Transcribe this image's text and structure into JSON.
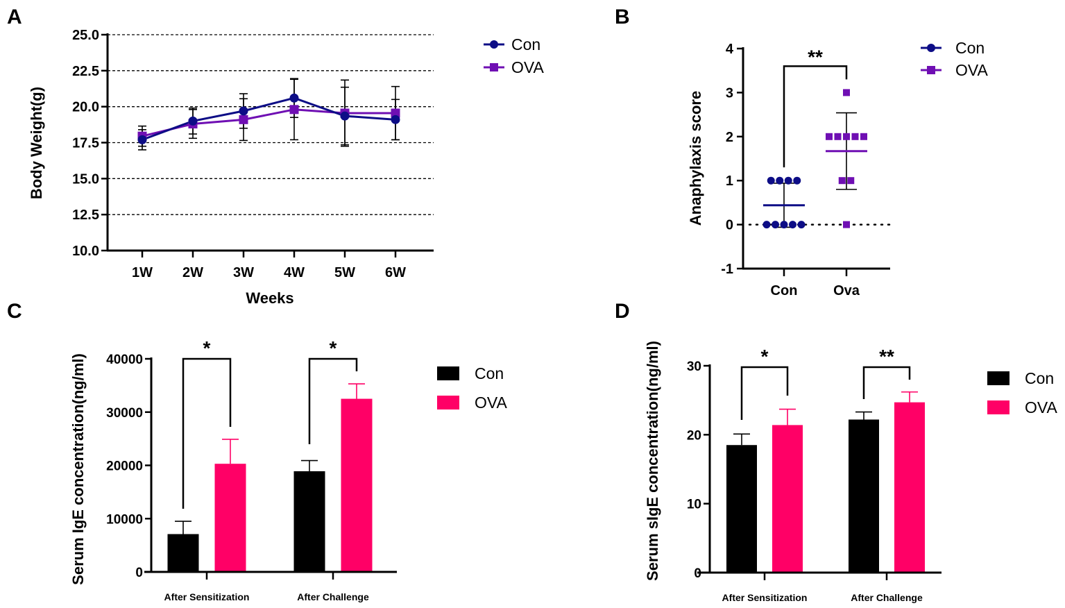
{
  "figure": {
    "panel_labels": [
      "A",
      "B",
      "C",
      "D"
    ],
    "colors": {
      "con_line": "#0d0d86",
      "ova_line": "#6f0fb3",
      "con_bar": "#000000",
      "ova_bar": "#ff0066",
      "axis": "#000000"
    }
  },
  "chart_data": [
    {
      "panel": "A",
      "type": "line",
      "title": "",
      "xlabel": "Weeks",
      "ylabel": "Body Weight(g)",
      "categories": [
        "1W",
        "2W",
        "3W",
        "4W",
        "5W",
        "6W"
      ],
      "ylim": [
        10.0,
        25.0
      ],
      "yticks": [
        "10.0",
        "12.5",
        "15.0",
        "17.5",
        "20.0",
        "22.5",
        "25.0"
      ],
      "ytick_values": [
        10.0,
        12.5,
        15.0,
        17.5,
        20.0,
        22.5,
        25.0
      ],
      "grid": "horizontal-dashed",
      "legend": {
        "placement": "top-right-outside",
        "entries": [
          "Con",
          "OVA"
        ]
      },
      "series": [
        {
          "name": "Con",
          "marker": "circle",
          "values": [
            17.7,
            19.0,
            19.7,
            20.6,
            19.35,
            19.1
          ],
          "err": [
            0.7,
            0.9,
            1.2,
            1.35,
            2.0,
            1.4
          ]
        },
        {
          "name": "OVA",
          "marker": "square",
          "values": [
            17.95,
            18.8,
            19.1,
            19.8,
            19.55,
            19.55
          ],
          "err": [
            0.7,
            1.0,
            1.45,
            2.1,
            2.3,
            1.85
          ]
        }
      ]
    },
    {
      "panel": "B",
      "type": "scatter",
      "title": "",
      "xlabel": "",
      "ylabel": "Anaphylaxis score",
      "categories": [
        "Con",
        "Ova"
      ],
      "ylim": [
        -1,
        4
      ],
      "yticks": [
        "-1",
        "0",
        "1",
        "2",
        "3",
        "4"
      ],
      "ytick_values": [
        -1,
        0,
        1,
        2,
        3,
        4
      ],
      "reference_line": 0,
      "legend": {
        "placement": "top-right-outside",
        "entries": [
          "Con",
          "OVA"
        ]
      },
      "series": [
        {
          "name": "Con",
          "marker": "circle",
          "points": [
            1,
            1,
            1,
            1,
            0,
            0,
            0,
            0,
            0
          ],
          "mean": 0.44,
          "sd": 0.5
        },
        {
          "name": "OVA",
          "marker": "square",
          "points": [
            3,
            2,
            2,
            2,
            2,
            2,
            1,
            1,
            0
          ],
          "mean": 1.67,
          "sd": 0.87
        }
      ],
      "significance": [
        {
          "between": [
            "Con",
            "Ova"
          ],
          "label": "**"
        }
      ]
    },
    {
      "panel": "C",
      "type": "bar",
      "title": "",
      "xlabel": "",
      "ylabel": "Serum IgE concentration(ng/ml)",
      "categories": [
        "After Sensitization",
        "After Challenge"
      ],
      "ylim": [
        0,
        40000
      ],
      "yticks": [
        "0",
        "10000",
        "20000",
        "30000",
        "40000"
      ],
      "ytick_values": [
        0,
        10000,
        20000,
        30000,
        40000
      ],
      "legend": {
        "placement": "right",
        "entries": [
          "Con",
          "OVA"
        ]
      },
      "series": [
        {
          "name": "Con",
          "values": [
            7100,
            18900
          ],
          "err": [
            2400,
            2000
          ]
        },
        {
          "name": "OVA",
          "values": [
            20300,
            32500
          ],
          "err": [
            4600,
            2800
          ]
        }
      ],
      "significance": [
        {
          "category": "After Sensitization",
          "label": "*"
        },
        {
          "category": "After Challenge",
          "label": "*"
        }
      ]
    },
    {
      "panel": "D",
      "type": "bar",
      "title": "",
      "xlabel": "",
      "ylabel": "Serum sIgE concentration(ng/ml)",
      "categories": [
        "After Sensitization",
        "After Challenge"
      ],
      "ylim": [
        0,
        30
      ],
      "yticks": [
        "0",
        "10",
        "20",
        "30"
      ],
      "ytick_values": [
        0,
        10,
        20,
        30
      ],
      "legend": {
        "placement": "right",
        "entries": [
          "Con",
          "OVA"
        ]
      },
      "series": [
        {
          "name": "Con",
          "values": [
            18.5,
            22.2
          ],
          "err": [
            1.6,
            1.1
          ]
        },
        {
          "name": "OVA",
          "values": [
            21.4,
            24.7
          ],
          "err": [
            2.3,
            1.5
          ]
        }
      ],
      "significance": [
        {
          "category": "After Sensitization",
          "label": "*"
        },
        {
          "category": "After Challenge",
          "label": "**"
        }
      ]
    }
  ]
}
